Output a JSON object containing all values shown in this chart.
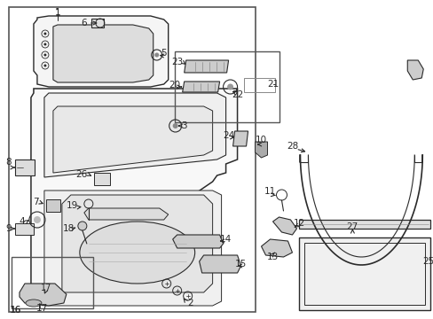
{
  "bg_color": "#ffffff",
  "lc": "#2a2a2a",
  "fig_w": 4.89,
  "fig_h": 3.6,
  "dpi": 100
}
